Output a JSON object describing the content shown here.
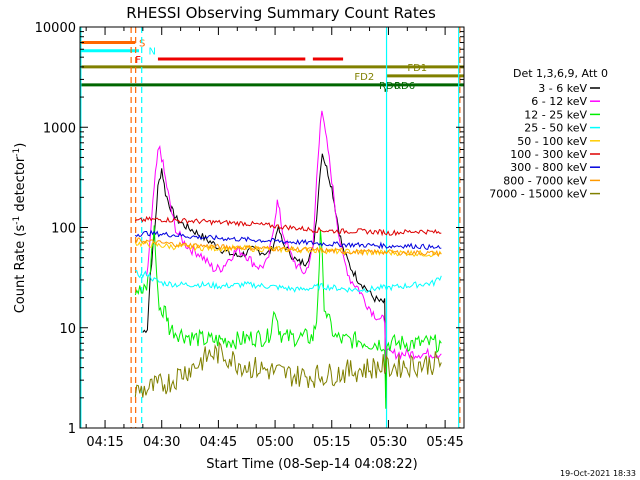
{
  "chart_data": {
    "type": "line",
    "title": "RHESSI Observing Summary Count Rates",
    "xlabel": "Start Time (08-Sep-14 04:08:22)",
    "ylabel_main": "Count Rate (s",
    "ylabel_sup": "-1",
    "ylabel_tail": " detector",
    "ylabel_sup2": "-1",
    "ylabel_close": ")",
    "yscale": "log",
    "ylim": [
      1,
      10000
    ],
    "xlim_min": [
      8.37,
      110.0
    ],
    "x_unit": "minutes after 04:00",
    "yticks": [
      {
        "v": 1,
        "label": "1"
      },
      {
        "v": 10,
        "label": "10"
      },
      {
        "v": 100,
        "label": "100"
      },
      {
        "v": 1000,
        "label": "1000"
      },
      {
        "v": 10000,
        "label": "10000"
      }
    ],
    "xticks": [
      {
        "v": 15,
        "label": "04:15"
      },
      {
        "v": 30,
        "label": "04:30"
      },
      {
        "v": 45,
        "label": "04:45"
      },
      {
        "v": 60,
        "label": "05:00"
      },
      {
        "v": 75,
        "label": "05:15"
      },
      {
        "v": 90,
        "label": "05:30"
      },
      {
        "v": 105,
        "label": "05:45"
      }
    ],
    "legend_header": "Det 1,3,6,9, Att 0",
    "legend_placement": "right",
    "series": [
      {
        "name": "3 - 6 keV",
        "color": "#000000",
        "points": [
          [
            25.0,
            9
          ],
          [
            26.2,
            10
          ],
          [
            27.0,
            35
          ],
          [
            28.0,
            80
          ],
          [
            29.0,
            250
          ],
          [
            30.0,
            390
          ],
          [
            31.0,
            220
          ],
          [
            32.0,
            170
          ],
          [
            33.0,
            140
          ],
          [
            34.0,
            120
          ],
          [
            36.0,
            105
          ],
          [
            38.0,
            95
          ],
          [
            40.0,
            85
          ],
          [
            42.0,
            75
          ],
          [
            44.0,
            68
          ],
          [
            46.0,
            60
          ],
          [
            48.0,
            55
          ],
          [
            50.0,
            52
          ],
          [
            52.0,
            55
          ],
          [
            54.0,
            60
          ],
          [
            56.0,
            58
          ],
          [
            58.0,
            55
          ],
          [
            59.0,
            60
          ],
          [
            60.0,
            75
          ],
          [
            60.6,
            100
          ],
          [
            61.2,
            90
          ],
          [
            62.0,
            70
          ],
          [
            64.0,
            55
          ],
          [
            66.0,
            45
          ],
          [
            68.0,
            45
          ],
          [
            70.0,
            60
          ],
          [
            71.0,
            130
          ],
          [
            72.0,
            400
          ],
          [
            72.5,
            560
          ],
          [
            73.0,
            480
          ],
          [
            74.0,
            350
          ],
          [
            75.0,
            250
          ],
          [
            76.0,
            150
          ],
          [
            77.0,
            90
          ],
          [
            78.0,
            60
          ],
          [
            80.0,
            40
          ],
          [
            82.0,
            30
          ],
          [
            84.0,
            25
          ],
          [
            86.0,
            20
          ],
          [
            88.0,
            18
          ],
          [
            89.0,
            18
          ],
          [
            89.3,
            2
          ]
        ]
      },
      {
        "name": "6 - 12 keV",
        "color": "#ff00ff",
        "points": [
          [
            26.0,
            30
          ],
          [
            27.0,
            80
          ],
          [
            28.0,
            250
          ],
          [
            29.0,
            550
          ],
          [
            29.5,
            650
          ],
          [
            30.0,
            500
          ],
          [
            31.0,
            300
          ],
          [
            32.0,
            190
          ],
          [
            33.0,
            120
          ],
          [
            34.0,
            90
          ],
          [
            36.0,
            70
          ],
          [
            38.0,
            60
          ],
          [
            40.0,
            55
          ],
          [
            42.0,
            45
          ],
          [
            44.0,
            38
          ],
          [
            46.0,
            40
          ],
          [
            48.0,
            50
          ],
          [
            50.0,
            60
          ],
          [
            52.0,
            55
          ],
          [
            54.0,
            45
          ],
          [
            56.0,
            40
          ],
          [
            58.0,
            45
          ],
          [
            59.0,
            70
          ],
          [
            60.0,
            130
          ],
          [
            60.6,
            180
          ],
          [
            61.2,
            140
          ],
          [
            62.0,
            90
          ],
          [
            64.0,
            55
          ],
          [
            66.0,
            40
          ],
          [
            68.0,
            35
          ],
          [
            70.0,
            60
          ],
          [
            71.0,
            300
          ],
          [
            72.0,
            1200
          ],
          [
            72.4,
            1500
          ],
          [
            73.0,
            1000
          ],
          [
            74.0,
            600
          ],
          [
            75.0,
            300
          ],
          [
            76.0,
            150
          ],
          [
            77.0,
            80
          ],
          [
            78.0,
            50
          ],
          [
            80.0,
            30
          ],
          [
            82.0,
            25
          ],
          [
            84.0,
            18
          ],
          [
            86.0,
            14
          ],
          [
            88.0,
            12
          ],
          [
            89.0,
            12
          ],
          [
            89.3,
            4
          ],
          [
            89.6,
            5.5
          ],
          [
            104.0,
            5.5
          ]
        ]
      },
      {
        "name": "12 - 25 keV",
        "color": "#00ee00",
        "points": [
          [
            23.0,
            25
          ],
          [
            25.0,
            22
          ],
          [
            26.0,
            25
          ],
          [
            27.0,
            40
          ],
          [
            28.0,
            100
          ],
          [
            29.0,
            20
          ],
          [
            30.0,
            14
          ],
          [
            31.0,
            15
          ],
          [
            32.0,
            10
          ],
          [
            34.0,
            9
          ],
          [
            38.0,
            8
          ],
          [
            42.0,
            7.5
          ],
          [
            46.0,
            7.5
          ],
          [
            50.0,
            7.5
          ],
          [
            54.0,
            8
          ],
          [
            58.0,
            8
          ],
          [
            59.0,
            10
          ],
          [
            60.0,
            16
          ],
          [
            61.0,
            10
          ],
          [
            62.0,
            8
          ],
          [
            66.0,
            8
          ],
          [
            70.0,
            8
          ],
          [
            71.0,
            12
          ],
          [
            72.0,
            80
          ],
          [
            72.5,
            45
          ],
          [
            73.0,
            18
          ],
          [
            74.0,
            12
          ],
          [
            76.0,
            8
          ],
          [
            78.0,
            7.5
          ],
          [
            82.0,
            7.5
          ],
          [
            86.0,
            7
          ],
          [
            89.0,
            7
          ],
          [
            89.3,
            1.5
          ],
          [
            89.6,
            7
          ],
          [
            104.0,
            7
          ]
        ]
      },
      {
        "name": "25 - 50 keV",
        "color": "#00ffff",
        "points": [
          [
            23.0,
            35
          ],
          [
            25.0,
            33
          ],
          [
            26.0,
            35
          ],
          [
            28.0,
            30
          ],
          [
            30.0,
            28
          ],
          [
            34.0,
            27
          ],
          [
            40.0,
            27
          ],
          [
            46.0,
            26
          ],
          [
            52.0,
            27
          ],
          [
            58.0,
            26
          ],
          [
            62.0,
            25
          ],
          [
            66.0,
            24
          ],
          [
            70.0,
            25
          ],
          [
            72.0,
            26
          ],
          [
            76.0,
            25
          ],
          [
            80.0,
            24
          ],
          [
            84.0,
            24
          ],
          [
            88.0,
            25
          ],
          [
            89.0,
            25
          ],
          [
            89.5,
            25
          ],
          [
            94.0,
            26
          ],
          [
            98.0,
            27
          ],
          [
            102.0,
            28
          ],
          [
            104.0,
            33
          ]
        ]
      },
      {
        "name": "50 - 100 keV",
        "color": "#ffcc00",
        "points": [
          [
            23.0,
            70
          ],
          [
            26.0,
            68
          ],
          [
            30.0,
            66
          ],
          [
            34.0,
            64
          ],
          [
            40.0,
            63
          ],
          [
            46.0,
            62
          ],
          [
            52.0,
            62
          ],
          [
            58.0,
            61
          ],
          [
            64.0,
            60
          ],
          [
            70.0,
            60
          ],
          [
            76.0,
            58
          ],
          [
            82.0,
            57
          ],
          [
            88.0,
            56
          ],
          [
            89.0,
            56
          ],
          [
            89.5,
            56
          ],
          [
            94.0,
            56
          ],
          [
            98.0,
            55
          ],
          [
            104.0,
            54
          ]
        ]
      },
      {
        "name": "100 - 300 keV",
        "color": "#dd0000",
        "points": [
          [
            23.0,
            115
          ],
          [
            26.0,
            120
          ],
          [
            30.0,
            120
          ],
          [
            34.0,
            118
          ],
          [
            40.0,
            115
          ],
          [
            46.0,
            112
          ],
          [
            52.0,
            110
          ],
          [
            58.0,
            105
          ],
          [
            64.0,
            100
          ],
          [
            70.0,
            95
          ],
          [
            76.0,
            92
          ],
          [
            82.0,
            92
          ],
          [
            88.0,
            90
          ],
          [
            89.0,
            90
          ],
          [
            89.5,
            88
          ],
          [
            94.0,
            90
          ],
          [
            98.0,
            92
          ],
          [
            102.0,
            90
          ],
          [
            104.0,
            88
          ]
        ]
      },
      {
        "name": "300 - 800 keV",
        "color": "#0000dd",
        "points": [
          [
            23.0,
            85
          ],
          [
            26.0,
            88
          ],
          [
            30.0,
            86
          ],
          [
            34.0,
            84
          ],
          [
            40.0,
            80
          ],
          [
            46.0,
            78
          ],
          [
            52.0,
            76
          ],
          [
            58.0,
            74
          ],
          [
            64.0,
            72
          ],
          [
            70.0,
            70
          ],
          [
            76.0,
            68
          ],
          [
            82.0,
            67
          ],
          [
            88.0,
            66
          ],
          [
            89.0,
            66
          ],
          [
            89.5,
            65
          ],
          [
            94.0,
            66
          ],
          [
            98.0,
            65
          ],
          [
            104.0,
            62
          ]
        ]
      },
      {
        "name": "800 - 7000 keV",
        "color": "#ff9900",
        "points": [
          [
            23.0,
            75
          ],
          [
            26.0,
            73
          ],
          [
            30.0,
            70
          ],
          [
            34.0,
            68
          ],
          [
            40.0,
            66
          ],
          [
            46.0,
            64
          ],
          [
            52.0,
            63
          ],
          [
            58.0,
            62
          ],
          [
            64.0,
            61
          ],
          [
            70.0,
            60
          ],
          [
            76.0,
            58
          ],
          [
            82.0,
            57
          ],
          [
            88.0,
            57
          ],
          [
            89.0,
            57
          ],
          [
            89.5,
            57
          ],
          [
            94.0,
            56
          ],
          [
            98.0,
            56
          ],
          [
            104.0,
            55
          ]
        ]
      },
      {
        "name": "7000 - 15000 keV",
        "color": "#808000",
        "points": [
          [
            23.0,
            2.3
          ],
          [
            27.0,
            2.5
          ],
          [
            30.0,
            2.7
          ],
          [
            33.0,
            3.0
          ],
          [
            35.0,
            3.5
          ],
          [
            38.0,
            4.0
          ],
          [
            40.0,
            4.5
          ],
          [
            43.0,
            5.5
          ],
          [
            46.0,
            5.5
          ],
          [
            48.0,
            5.0
          ],
          [
            50.0,
            4.5
          ],
          [
            54.0,
            4.0
          ],
          [
            58.0,
            3.8
          ],
          [
            62.0,
            3.5
          ],
          [
            66.0,
            3.3
          ],
          [
            70.0,
            3.3
          ],
          [
            74.0,
            3.4
          ],
          [
            78.0,
            3.6
          ],
          [
            82.0,
            3.8
          ],
          [
            86.0,
            4.0
          ],
          [
            89.0,
            4.2
          ],
          [
            89.5,
            4.0
          ],
          [
            94.0,
            4.2
          ],
          [
            98.0,
            4.3
          ],
          [
            104.0,
            4.5
          ]
        ]
      }
    ],
    "flags": [
      {
        "label": "S",
        "color": "#ff6600",
        "y": 7000,
        "x0": 8.4,
        "x1": 23.0,
        "label_x": 24.0
      },
      {
        "label": "N",
        "color": "#00ffff",
        "y": 5800,
        "x0": 8.4,
        "x1": 24.0,
        "label_x": 26.5
      },
      {
        "label": "F",
        "color": "#ee0000",
        "y": 4800,
        "segments": [
          [
            29.0,
            68.0
          ],
          [
            70.0,
            78.0
          ]
        ],
        "label_x": 23.0
      },
      {
        "label": "FD1",
        "color": "#808000",
        "y": 4000,
        "x0": 8.4,
        "x1": 110.0,
        "label_x": 95.0
      },
      {
        "label": "FD2",
        "color": "#808000",
        "y": 3250,
        "x0": 89.5,
        "x1": 110.0,
        "label_x": 81.0
      },
      {
        "label": "RD6",
        "color": "#006600",
        "y": 2650,
        "x0": 8.4,
        "x1": 110.0,
        "label_x": 87.5
      },
      {
        "label": "RD6",
        "color": "#006600",
        "y": 2650,
        "label_x": 91.5
      }
    ],
    "vlines": [
      {
        "x": 8.6,
        "color": "#00ffff",
        "style": "solid"
      },
      {
        "x": 21.9,
        "color": "#ff6600",
        "style": "dash"
      },
      {
        "x": 23.1,
        "color": "#ff6600",
        "style": "dash"
      },
      {
        "x": 24.7,
        "color": "#00ffff",
        "style": "dash"
      },
      {
        "x": 89.5,
        "color": "#00ffff",
        "style": "solid"
      },
      {
        "x": 108.6,
        "color": "#00ffff",
        "style": "solid"
      },
      {
        "x": 108.9,
        "color": "#ff6600",
        "style": "dash"
      }
    ]
  },
  "footer": {
    "timestamp": "19-Oct-2021 18:33"
  }
}
